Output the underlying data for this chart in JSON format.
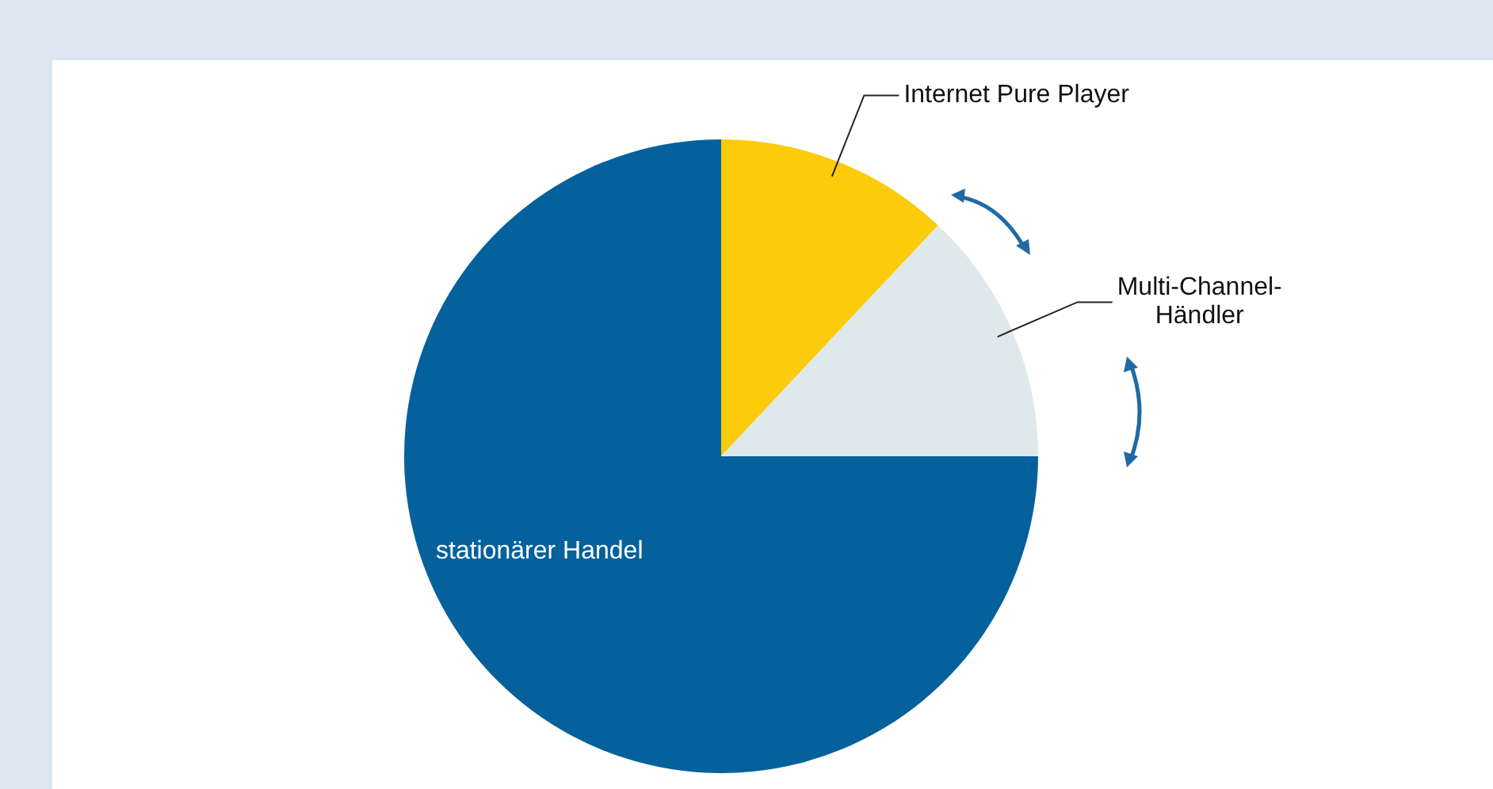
{
  "chart_data": {
    "type": "pie",
    "categories": [
      "Internet Pure Player",
      "Multi-Channel-Händler",
      "stationärer Handel"
    ],
    "values": [
      12,
      13,
      75
    ],
    "colors": [
      "#fccb0b",
      "#dfe8ea",
      "#05619c"
    ],
    "legend": false
  }
}
